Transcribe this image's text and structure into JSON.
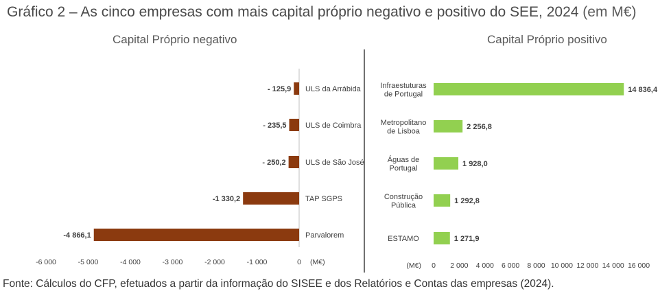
{
  "title": "Gráfico 2 – As cinco empresas com mais capital próprio negativo e positivo do SEE, 2024",
  "title_unit": "(em M€)",
  "footer": "Fonte: Cálculos do CFP, efetuados a partir da informação do SISEE e dos Relatórios e Contas das empresas (2024).",
  "colors": {
    "negative": "#8b3a0f",
    "positive": "#92d050",
    "divider": "#404040",
    "text": "#404040"
  },
  "chart_data": [
    {
      "type": "bar",
      "orientation": "horizontal",
      "title": "Capital Próprio negativo",
      "categories": [
        "ULS da Arrábida",
        "ULS de Coimbra",
        "ULS de São José",
        "TAP SGPS",
        "Parvalorem"
      ],
      "values": [
        -125.9,
        -235.5,
        -250.2,
        -1330.2,
        -4866.1
      ],
      "value_labels": [
        "- 125,9",
        "- 235,5",
        "- 250,2",
        "-1 330,2",
        "-4 866,1"
      ],
      "xlim": [
        -6000,
        0
      ],
      "ticks": [
        -6000,
        -5000,
        -4000,
        -3000,
        -2000,
        -1000,
        0
      ],
      "tick_labels": [
        "-6 000",
        "-5 000",
        "-4 000",
        "-3 000",
        "-2 000",
        "-1 000",
        "0"
      ],
      "unit_label": "(M€)",
      "category_position": "right"
    },
    {
      "type": "bar",
      "orientation": "horizontal",
      "title": "Capital Próprio positivo",
      "categories": [
        [
          "Infraestuturas",
          "de Portugal"
        ],
        [
          "Metropolitano",
          "de Lisboa"
        ],
        [
          "Águas de",
          "Portugal"
        ],
        [
          "Construção",
          "Pública"
        ],
        [
          "ESTAMO"
        ]
      ],
      "values": [
        14836.4,
        2256.8,
        1928.0,
        1292.8,
        1271.9
      ],
      "value_labels": [
        "14 836,4",
        "2 256,8",
        "1 928,0",
        "1 292,8",
        "1 271,9"
      ],
      "xlim": [
        0,
        16000
      ],
      "ticks": [
        0,
        2000,
        4000,
        6000,
        8000,
        10000,
        12000,
        14000,
        16000
      ],
      "tick_labels": [
        "0",
        "2 000",
        "4 000",
        "6 000",
        "8 000",
        "10 000",
        "12 000",
        "14 000",
        "16 000"
      ],
      "unit_label": "(M€)",
      "category_position": "left"
    }
  ]
}
